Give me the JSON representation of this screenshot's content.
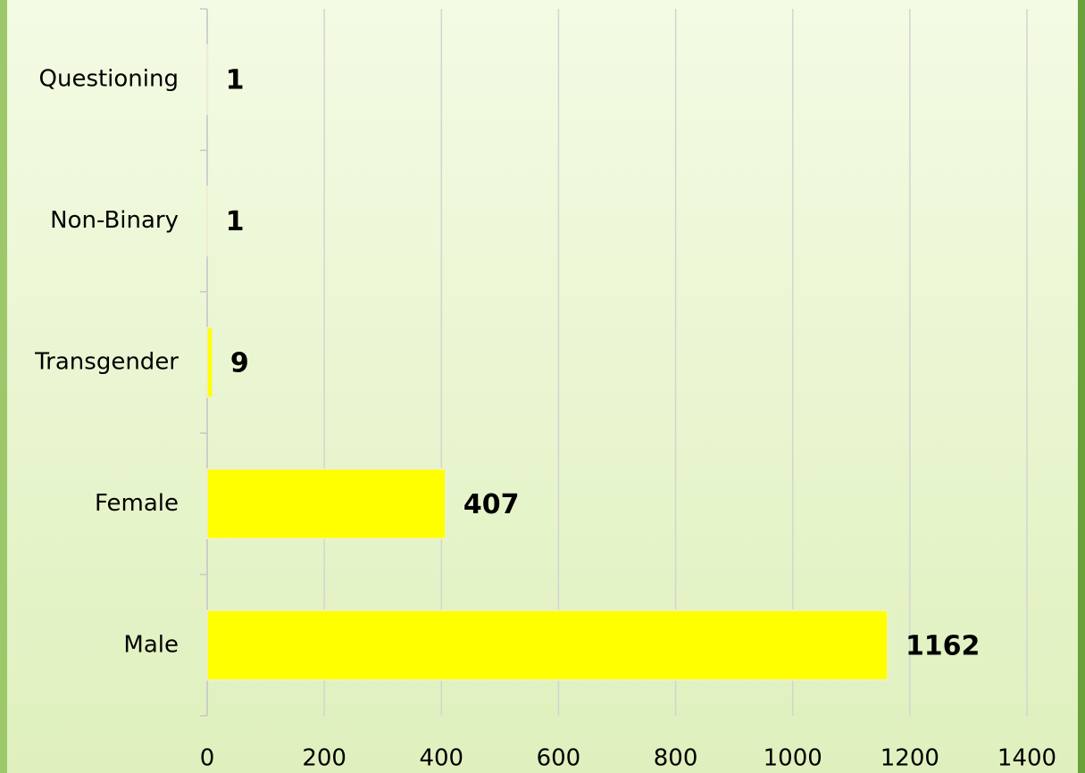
{
  "chart_data": {
    "type": "bar",
    "orientation": "horizontal",
    "categories": [
      "Questioning",
      "Non-Binary",
      "Transgender",
      "Female",
      "Male"
    ],
    "values": [
      1,
      1,
      9,
      407,
      1162
    ],
    "color": "#ffff00",
    "xlim": [
      0,
      1400
    ],
    "xticks": [
      0,
      200,
      400,
      600,
      800,
      1000,
      1200,
      1400
    ],
    "grid": true
  }
}
